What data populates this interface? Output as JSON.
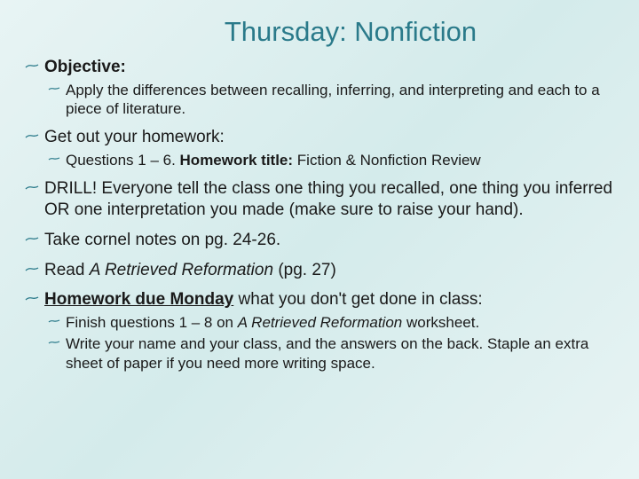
{
  "title": "Thursday: Nonfiction",
  "items": [
    {
      "level": 1,
      "html": "<span class='bold'>Objective:</span>"
    },
    {
      "level": 2,
      "html": "Apply the differences between recalling, inferring, and interpreting and each to a piece of literature."
    },
    {
      "level": 1,
      "html": "Get out your homework:"
    },
    {
      "level": 2,
      "html": "Questions 1 – 6. <span class='bold'>Homework title:</span> Fiction & Nonfiction Review"
    },
    {
      "level": 1,
      "html": "DRILL! Everyone tell the class one thing you recalled, one thing you inferred OR one interpretation you made (make sure to raise your hand)."
    },
    {
      "level": 1,
      "html": "Take cornel notes on pg. 24-26."
    },
    {
      "level": 1,
      "html": "Read <span class='italic'>A Retrieved Reformation</span> (pg. 27)"
    },
    {
      "level": 1,
      "html": "<span class='bold underline'>Homework due Monday</span> what you don't get done in class:"
    },
    {
      "level": 2,
      "html": "Finish questions 1 – 8 on <span class='italic'>A Retrieved Reformation</span> worksheet."
    },
    {
      "level": 2,
      "html": "Write your name and your class, and the answers on the back. Staple an extra sheet of paper if you need more writing space."
    }
  ],
  "colors": {
    "title_color": "#2a7a8a",
    "text_color": "#1a1a1a",
    "bg_light": "#e8f4f4",
    "bg_mid": "#d4ebeb"
  }
}
